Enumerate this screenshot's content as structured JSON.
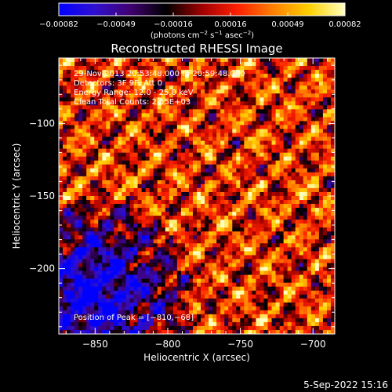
{
  "chart_data": {
    "type": "heatmap",
    "title": "Reconstructed RHESSI Image",
    "xlabel": "Heliocentric X (arcsec)",
    "ylabel": "Heliocentric Y (arcsec)",
    "xlim": [
      -875,
      -685
    ],
    "ylim": [
      -245,
      -55
    ],
    "x_ticks": [
      -850,
      -800,
      -750,
      -700
    ],
    "y_ticks": [
      -100,
      -150,
      -200
    ],
    "x_tick_labels": [
      "−850",
      "−800",
      "−750",
      "−700"
    ],
    "y_tick_labels": [
      "−100",
      "−150",
      "−200"
    ],
    "colorbar": {
      "min": -0.00082,
      "max": 0.00082,
      "ticks": [
        "−0.00082",
        "−0.00049",
        "−0.00016",
        "0.00016",
        "0.00049",
        "0.00082"
      ],
      "unit_label_html": "(photons cm<tspan baseline-shift='super' font-size='7'>−2</tspan> s<tspan baseline-shift='super' font-size='7'>−1</tspan> asec<tspan baseline-shift='super' font-size='7'>−2</tspan>)",
      "colormap_stops": [
        "#0000ff",
        "#3010d0",
        "#400070",
        "#000000",
        "#a00000",
        "#ff2000",
        "#ff8000",
        "#ffd000",
        "#ffffc0"
      ]
    },
    "annotations": [
      "29-Nov-2013 20:53:48.000 to 20:59:48.000",
      "Detectors: 3F 9F, Att 0",
      "Energy Range: 12.0 - 25.0 keV",
      "Clean    Total Counts: 2.55E+03"
    ],
    "peak_label": "Position of Peak = [−810,−68]",
    "peak_position": [
      -810,
      -68
    ],
    "grid": false
  },
  "footer": {
    "timestamp": "5-Sep-2022 15:16"
  }
}
